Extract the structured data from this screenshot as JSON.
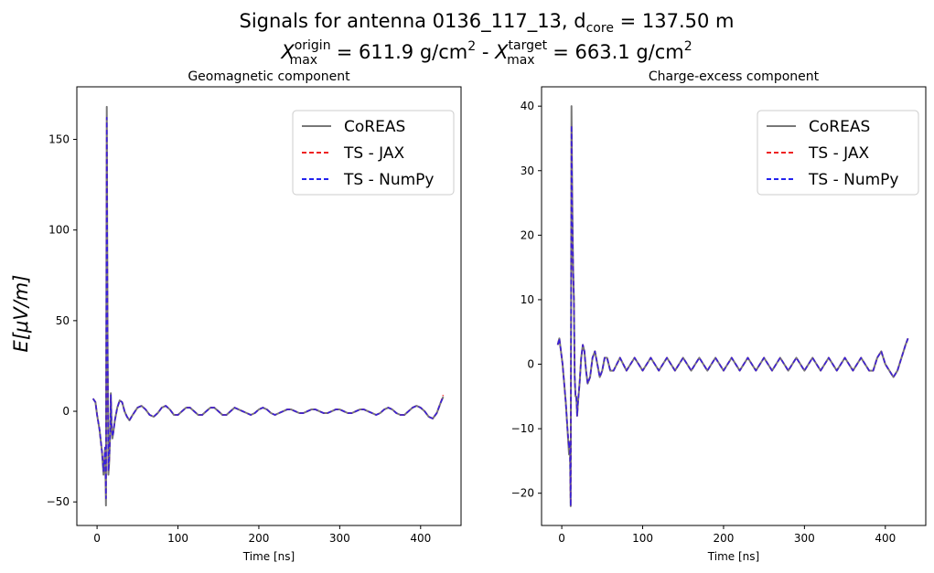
{
  "figure": {
    "title_line1": "Signals for antenna 0136_117_13, d",
    "title_line1_sub": "core",
    "title_line1_tail": " = 137.50 m",
    "title_line2_a": "X",
    "title_line2_a_sup": "origin",
    "title_line2_a_sub": "max",
    "title_line2_mid": " =  611.9 g/cm",
    "title_line2_b": "X",
    "title_line2_b_sup": "target",
    "title_line2_b_sub": "max",
    "title_line2_end": " =  663.1 g/cm",
    "sq": "2",
    "sep": " -  ",
    "shared_ylabel": "E[μV/m]"
  },
  "legend": {
    "entries": [
      {
        "label": "CoREAS",
        "color": "#777777",
        "style": "solid"
      },
      {
        "label": "TS - JAX",
        "color": "#ee2222",
        "style": "dashed"
      },
      {
        "label": "TS - NumPy",
        "color": "#2222ee",
        "style": "dashed"
      }
    ]
  },
  "chart_data": [
    {
      "type": "line",
      "title": "Geomagnetic component",
      "xlabel": "Time [ns]",
      "ylabel": "E[μV/m]",
      "xlim": [
        -25,
        450
      ],
      "ylim": [
        -63,
        179
      ],
      "xticks": [
        0,
        100,
        200,
        300,
        400
      ],
      "yticks": [
        -50,
        0,
        50,
        100,
        150
      ],
      "legend_position": "top-right",
      "grid": false,
      "x": [
        -5,
        -2,
        0,
        3,
        6,
        8,
        10,
        11,
        12,
        13,
        14,
        15,
        16,
        17,
        18,
        19,
        20,
        22,
        25,
        28,
        31,
        34,
        37,
        40,
        44,
        50,
        55,
        60,
        65,
        70,
        75,
        80,
        85,
        90,
        95,
        100,
        105,
        110,
        115,
        120,
        125,
        130,
        135,
        140,
        145,
        150,
        155,
        160,
        165,
        170,
        175,
        180,
        185,
        190,
        195,
        200,
        205,
        210,
        215,
        220,
        225,
        230,
        235,
        240,
        245,
        250,
        255,
        260,
        265,
        270,
        275,
        280,
        285,
        290,
        295,
        300,
        305,
        310,
        315,
        320,
        325,
        330,
        335,
        340,
        345,
        350,
        355,
        360,
        365,
        370,
        375,
        380,
        385,
        390,
        395,
        400,
        405,
        410,
        415,
        420,
        425,
        428
      ],
      "series": [
        {
          "name": "CoREAS",
          "values": [
            7,
            5,
            -2,
            -10,
            -22,
            -35,
            -20,
            -52,
            168,
            40,
            -35,
            -28,
            -15,
            10,
            -8,
            -15,
            -12,
            -5,
            2,
            6,
            5,
            0,
            -3,
            -5,
            -2,
            2,
            3,
            1,
            -2,
            -3,
            -1,
            2,
            3,
            1,
            -2,
            -2,
            0,
            2,
            2,
            0,
            -2,
            -2,
            0,
            2,
            2,
            0,
            -2,
            -2,
            0,
            2,
            1,
            0,
            -1,
            -2,
            -1,
            1,
            2,
            1,
            -1,
            -2,
            -1,
            0,
            1,
            1,
            0,
            -1,
            -1,
            0,
            1,
            1,
            0,
            -1,
            -1,
            0,
            1,
            1,
            0,
            -1,
            -1,
            0,
            1,
            1,
            0,
            -1,
            -2,
            -1,
            1,
            2,
            1,
            -1,
            -2,
            -2,
            0,
            2,
            3,
            2,
            0,
            -3,
            -4,
            -1,
            5,
            8
          ]
        },
        {
          "name": "TS - JAX",
          "values": [
            7,
            5,
            -2,
            -10,
            -22,
            -33,
            -20,
            -48,
            162,
            38,
            -33,
            -27,
            -15,
            9,
            -8,
            -14,
            -12,
            -5,
            2,
            6,
            5,
            0,
            -3,
            -5,
            -2,
            2,
            3,
            1,
            -2,
            -3,
            -1,
            2,
            3,
            1,
            -2,
            -2,
            0,
            2,
            2,
            0,
            -2,
            -2,
            0,
            2,
            2,
            0,
            -2,
            -2,
            0,
            2,
            1,
            0,
            -1,
            -2,
            -1,
            1,
            2,
            1,
            -1,
            -2,
            -1,
            0,
            1,
            1,
            0,
            -1,
            -1,
            0,
            1,
            1,
            0,
            -1,
            -1,
            0,
            1,
            1,
            0,
            -1,
            -1,
            0,
            1,
            1,
            0,
            -1,
            -2,
            -1,
            1,
            2,
            1,
            -1,
            -2,
            -2,
            0,
            2,
            3,
            2,
            0,
            -3,
            -4,
            -1,
            5,
            9
          ]
        },
        {
          "name": "TS - NumPy",
          "values": [
            7,
            5,
            -2,
            -10,
            -22,
            -33,
            -20,
            -48,
            162,
            38,
            -33,
            -27,
            -15,
            9,
            -8,
            -14,
            -12,
            -5,
            2,
            6,
            5,
            0,
            -3,
            -5,
            -2,
            2,
            3,
            1,
            -2,
            -3,
            -1,
            2,
            3,
            1,
            -2,
            -2,
            0,
            2,
            2,
            0,
            -2,
            -2,
            0,
            2,
            2,
            0,
            -2,
            -2,
            0,
            2,
            1,
            0,
            -1,
            -2,
            -1,
            1,
            2,
            1,
            -1,
            -2,
            -1,
            0,
            1,
            1,
            0,
            -1,
            -1,
            0,
            1,
            1,
            0,
            -1,
            -1,
            0,
            1,
            1,
            0,
            -1,
            -1,
            0,
            1,
            1,
            0,
            -1,
            -2,
            -1,
            1,
            2,
            1,
            -1,
            -2,
            -2,
            0,
            2,
            3,
            2,
            0,
            -3,
            -4,
            -1,
            5,
            8
          ]
        }
      ]
    },
    {
      "type": "line",
      "title": "Charge-excess component",
      "xlabel": "Time [ns]",
      "ylabel": "",
      "xlim": [
        -25,
        450
      ],
      "ylim": [
        -25,
        43
      ],
      "xticks": [
        0,
        100,
        200,
        300,
        400
      ],
      "yticks": [
        -20,
        -10,
        0,
        10,
        20,
        30,
        40
      ],
      "legend_position": "top-right",
      "grid": false,
      "x": [
        -5,
        -3,
        -1,
        1,
        3,
        5,
        7,
        9,
        10,
        11,
        12,
        13,
        14,
        15,
        16,
        17,
        18,
        19,
        20,
        22,
        24,
        26,
        28,
        30,
        32,
        35,
        38,
        41,
        44,
        47,
        50,
        53,
        56,
        60,
        64,
        68,
        72,
        76,
        80,
        85,
        90,
        95,
        100,
        105,
        110,
        115,
        120,
        125,
        130,
        135,
        140,
        145,
        150,
        155,
        160,
        165,
        170,
        175,
        180,
        185,
        190,
        195,
        200,
        205,
        210,
        215,
        220,
        225,
        230,
        235,
        240,
        245,
        250,
        255,
        260,
        265,
        270,
        275,
        280,
        285,
        290,
        295,
        300,
        305,
        310,
        315,
        320,
        325,
        330,
        335,
        340,
        345,
        350,
        355,
        360,
        365,
        370,
        375,
        380,
        385,
        390,
        395,
        400,
        405,
        410,
        415,
        420,
        425,
        428
      ],
      "series": [
        {
          "name": "CoREAS",
          "values": [
            3,
            4,
            2,
            0,
            -3,
            -6,
            -10,
            -14,
            -12,
            -22,
            40,
            25,
            15,
            10,
            -2,
            -5,
            -5,
            -8,
            -6,
            -3,
            1,
            3,
            2,
            -1,
            -3,
            -2,
            1,
            2,
            0,
            -2,
            -1,
            1,
            1,
            -1,
            -1,
            0,
            1,
            0,
            -1,
            0,
            1,
            0,
            -1,
            0,
            1,
            0,
            -1,
            0,
            1,
            0,
            -1,
            0,
            1,
            0,
            -1,
            0,
            1,
            0,
            -1,
            0,
            1,
            0,
            -1,
            0,
            1,
            0,
            -1,
            0,
            1,
            0,
            -1,
            0,
            1,
            0,
            -1,
            0,
            1,
            0,
            -1,
            0,
            1,
            0,
            -1,
            0,
            1,
            0,
            -1,
            0,
            1,
            0,
            -1,
            0,
            1,
            0,
            -1,
            0,
            1,
            0,
            -1,
            -1,
            1,
            2,
            0,
            -1,
            -2,
            -1,
            1,
            3,
            4
          ]
        },
        {
          "name": "TS - JAX",
          "values": [
            3,
            4,
            2,
            0,
            -3,
            -6,
            -10,
            -13,
            -12,
            -22,
            37,
            23,
            15,
            10,
            -2,
            -5,
            -5,
            -8,
            -6,
            -3,
            1,
            3,
            2,
            -1,
            -3,
            -2,
            1,
            2,
            0,
            -2,
            -1,
            1,
            1,
            -1,
            -1,
            0,
            1,
            0,
            -1,
            0,
            1,
            0,
            -1,
            0,
            1,
            0,
            -1,
            0,
            1,
            0,
            -1,
            0,
            1,
            0,
            -1,
            0,
            1,
            0,
            -1,
            0,
            1,
            0,
            -1,
            0,
            1,
            0,
            -1,
            0,
            1,
            0,
            -1,
            0,
            1,
            0,
            -1,
            0,
            1,
            0,
            -1,
            0,
            1,
            0,
            -1,
            0,
            1,
            0,
            -1,
            0,
            1,
            0,
            -1,
            0,
            1,
            0,
            -1,
            0,
            1,
            0,
            -1,
            -1,
            1,
            2,
            0,
            -1,
            -2,
            -1,
            1,
            3,
            4
          ]
        },
        {
          "name": "TS - NumPy",
          "values": [
            3,
            4,
            2,
            0,
            -3,
            -6,
            -10,
            -13,
            -12,
            -22,
            37,
            23,
            15,
            10,
            -2,
            -5,
            -5,
            -8,
            -6,
            -3,
            1,
            3,
            2,
            -1,
            -3,
            -2,
            1,
            2,
            0,
            -2,
            -1,
            1,
            1,
            -1,
            -1,
            0,
            1,
            0,
            -1,
            0,
            1,
            0,
            -1,
            0,
            1,
            0,
            -1,
            0,
            1,
            0,
            -1,
            0,
            1,
            0,
            -1,
            0,
            1,
            0,
            -1,
            0,
            1,
            0,
            -1,
            0,
            1,
            0,
            -1,
            0,
            1,
            0,
            -1,
            0,
            1,
            0,
            -1,
            0,
            1,
            0,
            -1,
            0,
            1,
            0,
            -1,
            0,
            1,
            0,
            -1,
            0,
            1,
            0,
            -1,
            0,
            1,
            0,
            -1,
            0,
            1,
            0,
            -1,
            -1,
            1,
            2,
            0,
            -1,
            -2,
            -1,
            1,
            3,
            4
          ]
        }
      ]
    }
  ]
}
